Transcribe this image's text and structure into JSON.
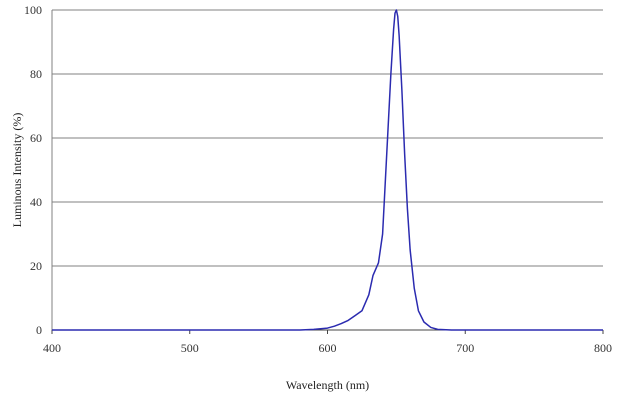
{
  "chart_data": {
    "type": "line",
    "title": "",
    "xlabel": "Wavelength (nm)",
    "ylabel": "Luminous Intensity (%)",
    "xlim": [
      400,
      800
    ],
    "ylim": [
      0,
      100
    ],
    "x_ticks": [
      400,
      500,
      600,
      700,
      800
    ],
    "y_ticks": [
      0,
      20,
      40,
      60,
      80,
      100
    ],
    "grid": "horizontal",
    "legend": "none",
    "series": [
      {
        "color": "#2b2bb0",
        "x": [
          400,
          580,
          590,
          600,
          605,
          610,
          615,
          620,
          625,
          630,
          633,
          637,
          640,
          643,
          646,
          648,
          649,
          650,
          651,
          652,
          654,
          656,
          658,
          660,
          663,
          666,
          670,
          675,
          680,
          690,
          700,
          800
        ],
        "y": [
          0,
          0,
          0.2,
          0.6,
          1.2,
          2,
          3,
          4.5,
          6,
          11,
          17,
          21,
          30,
          55,
          80,
          94,
          99,
          100,
          98,
          92,
          75,
          55,
          38,
          25,
          13,
          6,
          2.5,
          0.8,
          0.2,
          0,
          0,
          0
        ]
      }
    ]
  }
}
